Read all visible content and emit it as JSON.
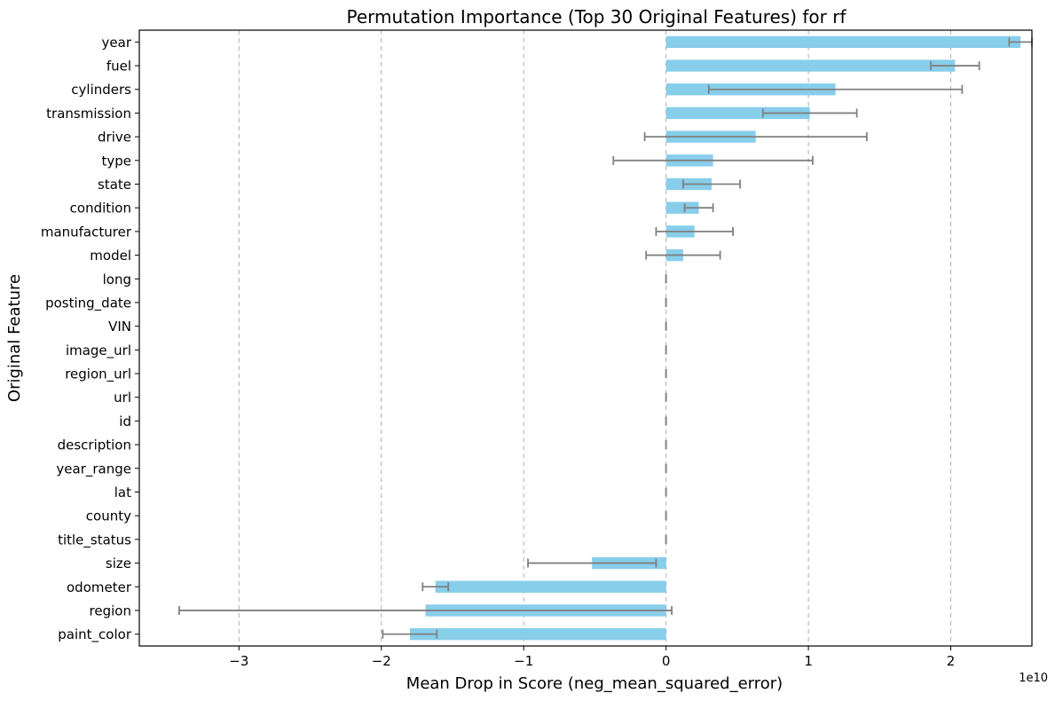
{
  "chart_data": {
    "type": "bar",
    "orientation": "horizontal",
    "title": "Permutation Importance (Top 30 Original Features) for rf",
    "xlabel": "Mean Drop in Score (neg_mean_squared_error)",
    "ylabel": "Original Feature",
    "x_offset_label": "1e10",
    "x_scale": 10000000000,
    "xlim": [
      -3.7,
      2.57
    ],
    "xticks": [
      -3,
      -2,
      -1,
      0,
      1,
      2
    ],
    "xtick_labels": [
      "−3",
      "−2",
      "−1",
      "0",
      "1",
      "2"
    ],
    "grid": "x-dashed",
    "bar_color": "#87ceeb",
    "error_color": "#808080",
    "categories": [
      "year",
      "fuel",
      "cylinders",
      "transmission",
      "drive",
      "type",
      "state",
      "condition",
      "manufacturer",
      "model",
      "long",
      "posting_date",
      "VIN",
      "image_url",
      "region_url",
      "url",
      "id",
      "description",
      "year_range",
      "lat",
      "county",
      "title_status",
      "size",
      "odometer",
      "region",
      "paint_color"
    ],
    "values": [
      2.49,
      2.03,
      1.19,
      1.01,
      0.63,
      0.33,
      0.32,
      0.23,
      0.2,
      0.12,
      0,
      0,
      0,
      0,
      0,
      0,
      0,
      0,
      0,
      0,
      0,
      0,
      -0.52,
      -1.62,
      -1.69,
      -1.8
    ],
    "errors": [
      0.08,
      0.17,
      0.89,
      0.33,
      0.78,
      0.7,
      0.2,
      0.1,
      0.27,
      0.26,
      0,
      0,
      0,
      0,
      0,
      0,
      0,
      0,
      0,
      0,
      0,
      0,
      0.45,
      0.09,
      1.73,
      0.19
    ]
  }
}
